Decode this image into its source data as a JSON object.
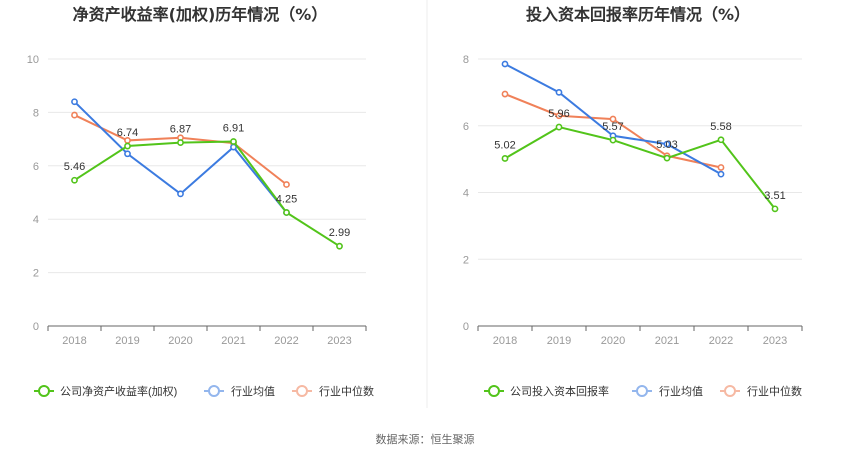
{
  "source": "数据来源：恒生聚源",
  "colors": {
    "company": "#52c41a",
    "avg": "#3c7be0",
    "median": "#f08159",
    "grid": "#e8e8e8",
    "axis": "#666666",
    "divider": "#eeeeee"
  },
  "chart_data": [
    {
      "type": "line",
      "title": "净资产收益率(加权)历年情况（%）",
      "categories": [
        "2018",
        "2019",
        "2020",
        "2021",
        "2022",
        "2023"
      ],
      "ylim": [
        0,
        10
      ],
      "yticks": [
        0,
        2,
        4,
        6,
        8,
        10
      ],
      "grid": true,
      "legend_position": "bottom",
      "series": [
        {
          "name": "公司净资产收益率(加权)",
          "key": "company",
          "values": [
            5.46,
            6.74,
            6.87,
            6.91,
            4.25,
            2.99
          ],
          "labels": [
            "5.46",
            "6.74",
            "6.87",
            "6.91",
            "4.25",
            "2.99"
          ]
        },
        {
          "name": "行业均值",
          "key": "avg",
          "values": [
            8.4,
            6.45,
            4.95,
            6.7,
            4.25,
            null
          ]
        },
        {
          "name": "行业中位数",
          "key": "median",
          "values": [
            7.9,
            6.95,
            7.05,
            6.85,
            5.3,
            null
          ]
        }
      ]
    },
    {
      "type": "line",
      "title": "投入资本回报率历年情况（%）",
      "categories": [
        "2018",
        "2019",
        "2020",
        "2021",
        "2022",
        "2023"
      ],
      "ylim": [
        0,
        8
      ],
      "yticks": [
        0,
        2,
        4,
        6,
        8
      ],
      "grid": true,
      "legend_position": "bottom",
      "series": [
        {
          "name": "公司投入资本回报率",
          "key": "company",
          "values": [
            5.02,
            5.96,
            5.57,
            5.03,
            5.58,
            3.51
          ],
          "labels": [
            "5.02",
            "5.96",
            "5.57",
            "5.03",
            "5.58",
            "3.51"
          ]
        },
        {
          "name": "行业均值",
          "key": "avg",
          "values": [
            7.85,
            7.0,
            5.7,
            5.45,
            4.55,
            null
          ]
        },
        {
          "name": "行业中位数",
          "key": "median",
          "values": [
            6.95,
            6.3,
            6.2,
            5.1,
            4.75,
            null
          ]
        }
      ]
    }
  ]
}
